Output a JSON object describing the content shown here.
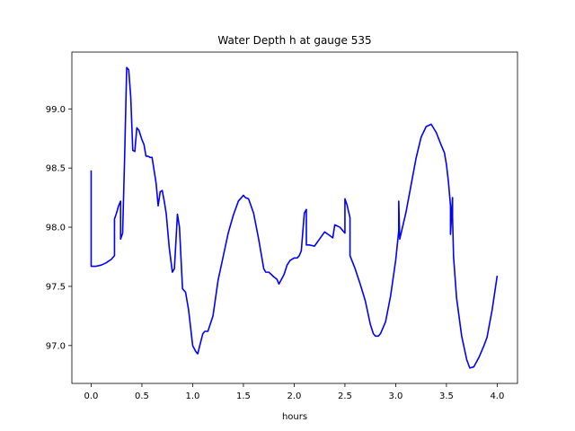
{
  "chart_data": {
    "type": "line",
    "title": "Water Depth h at gauge 535",
    "xlabel": "hours",
    "ylabel": "",
    "xlim": [
      -0.19,
      4.2
    ],
    "ylim": [
      96.68,
      99.48
    ],
    "xticks": [
      "0.0",
      "0.5",
      "1.0",
      "1.5",
      "2.0",
      "2.5",
      "3.0",
      "3.5",
      "4.0"
    ],
    "xtick_values": [
      0,
      0.5,
      1,
      1.5,
      2,
      2.5,
      3,
      3.5,
      4
    ],
    "yticks": [
      "97.0",
      "97.5",
      "98.0",
      "98.5",
      "99.0"
    ],
    "ytick_values": [
      97,
      97.5,
      98,
      98.5,
      99
    ],
    "grid": false,
    "series": [
      {
        "color": "#0000ff",
        "x": [
          0.0,
          0.0,
          0.0,
          0.05,
          0.1,
          0.15,
          0.2,
          0.23,
          0.23,
          0.25,
          0.27,
          0.29,
          0.29,
          0.31,
          0.33,
          0.35,
          0.37,
          0.39,
          0.41,
          0.43,
          0.45,
          0.47,
          0.5,
          0.52,
          0.54,
          0.56,
          0.58,
          0.6,
          0.62,
          0.64,
          0.66,
          0.68,
          0.7,
          0.72,
          0.74,
          0.77,
          0.8,
          0.82,
          0.85,
          0.87,
          0.9,
          0.93,
          0.96,
          1.0,
          1.03,
          1.05,
          1.07,
          1.1,
          1.12,
          1.15,
          1.2,
          1.25,
          1.3,
          1.35,
          1.4,
          1.45,
          1.5,
          1.52,
          1.55,
          1.6,
          1.65,
          1.7,
          1.72,
          1.75,
          1.8,
          1.83,
          1.85,
          1.9,
          1.93,
          1.96,
          2.0,
          2.03,
          2.05,
          2.07,
          2.1,
          2.12,
          2.12,
          2.15,
          2.2,
          2.25,
          2.3,
          2.35,
          2.38,
          2.4,
          2.45,
          2.5,
          2.5,
          2.52,
          2.55,
          2.55,
          2.6,
          2.65,
          2.7,
          2.75,
          2.78,
          2.8,
          2.83,
          2.85,
          2.9,
          2.95,
          3.0,
          3.03,
          3.03,
          3.04,
          3.1,
          3.15,
          3.2,
          3.25,
          3.3,
          3.35,
          3.4,
          3.45,
          3.48,
          3.5,
          3.52,
          3.54,
          3.54,
          3.56,
          3.56,
          3.57,
          3.6,
          3.65,
          3.7,
          3.73,
          3.77,
          3.82,
          3.87,
          3.9,
          3.95,
          4.0
        ],
        "y": [
          98.48,
          98.0,
          97.67,
          97.67,
          97.68,
          97.7,
          97.73,
          97.76,
          98.07,
          98.12,
          98.18,
          98.22,
          97.9,
          97.95,
          98.6,
          99.35,
          99.33,
          99.1,
          98.65,
          98.64,
          98.84,
          98.82,
          98.74,
          98.7,
          98.6,
          98.6,
          98.59,
          98.59,
          98.48,
          98.37,
          98.18,
          98.3,
          98.31,
          98.22,
          98.11,
          97.82,
          97.62,
          97.65,
          98.11,
          98.0,
          97.48,
          97.45,
          97.3,
          97.0,
          96.95,
          96.93,
          97.0,
          97.1,
          97.12,
          97.12,
          97.25,
          97.55,
          97.75,
          97.95,
          98.1,
          98.22,
          98.27,
          98.25,
          98.24,
          98.12,
          97.9,
          97.65,
          97.62,
          97.62,
          97.58,
          97.56,
          97.52,
          97.6,
          97.68,
          97.72,
          97.74,
          97.74,
          97.76,
          97.8,
          98.12,
          98.15,
          97.85,
          97.85,
          97.84,
          97.9,
          97.96,
          97.93,
          97.91,
          98.02,
          98.0,
          97.95,
          98.24,
          98.19,
          98.08,
          97.76,
          97.65,
          97.52,
          97.38,
          97.18,
          97.1,
          97.08,
          97.08,
          97.1,
          97.2,
          97.42,
          97.72,
          97.97,
          98.22,
          97.9,
          98.12,
          98.35,
          98.58,
          98.76,
          98.85,
          98.87,
          98.8,
          98.69,
          98.63,
          98.53,
          98.38,
          98.18,
          97.94,
          98.25,
          98.09,
          97.75,
          97.4,
          97.08,
          96.88,
          96.81,
          96.82,
          96.9,
          97.0,
          97.07,
          97.3,
          97.59
        ]
      }
    ]
  }
}
